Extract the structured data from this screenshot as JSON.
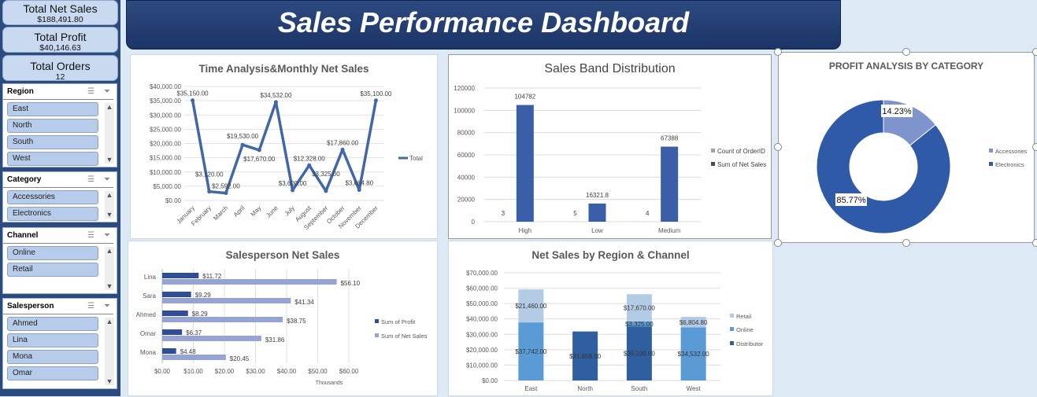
{
  "kpis": [
    {
      "label": "Total Net Sales",
      "value": "$188,491.80"
    },
    {
      "label": "Total Profit",
      "value": "$40,146.63"
    },
    {
      "label": "Total Orders",
      "value": "12"
    }
  ],
  "slicers": {
    "region": {
      "title": "Region",
      "items": [
        "East",
        "North",
        "South",
        "West"
      ]
    },
    "category": {
      "title": "Category",
      "items": [
        "Accessories",
        "Electronics"
      ]
    },
    "channel": {
      "title": "Channel",
      "items": [
        "Online",
        "Retail"
      ]
    },
    "salesperson": {
      "title": "Salesperson",
      "items": [
        "Ahmed",
        "Lina",
        "Mona",
        "Omar"
      ]
    }
  },
  "header": {
    "title": "Sales Performance Dashboard"
  },
  "colors": {
    "navy": "#1f3864",
    "series": "#3b5ea8",
    "light": "#8e9fd0"
  },
  "chart_data": [
    {
      "id": "monthly",
      "type": "line",
      "title": "Time Analysis&Monthly Net Sales",
      "categories": [
        "January",
        "February",
        "March",
        "April",
        "May",
        "June",
        "July",
        "August",
        "September",
        "October",
        "November",
        "December"
      ],
      "values": [
        35150,
        3120,
        2592,
        19530,
        17670,
        34532,
        3600,
        12328,
        3325,
        17860,
        3684.8,
        35100
      ],
      "labels": [
        "$35,150.00",
        "$3,120.00",
        "$2,592.00",
        "$19,530.00",
        "$17,670.00",
        "$34,532.00",
        "$3,600.00",
        "$12,328.00",
        "$3,325.00",
        "$17,860.00",
        "$3,684.80",
        "$35,100.00"
      ],
      "yticks": [
        "$0.00",
        "$5,000.00",
        "$10,000.00",
        "$15,000.00",
        "$20,000.00",
        "$25,000.00",
        "$30,000.00",
        "$35,000.00",
        "$40,000.00"
      ],
      "ylim": [
        0,
        40000
      ],
      "legend": "Total"
    },
    {
      "id": "band",
      "type": "bar",
      "title": "Sales Band Distribution",
      "categories": [
        "High",
        "Low",
        "Medium"
      ],
      "series": [
        {
          "name": "Count of OrderID",
          "values": [
            3,
            5,
            4
          ]
        },
        {
          "name": "Sum of Net Sales",
          "values": [
            104782,
            16321.8,
            67388
          ]
        }
      ],
      "yticks": [
        "0",
        "20000",
        "40000",
        "60000",
        "80000",
        "100000",
        "120000"
      ],
      "ylim": [
        0,
        120000
      ]
    },
    {
      "id": "profit",
      "type": "pie",
      "title": "PROFIT ANALYSIS BY CATEGORY",
      "categories": [
        "Accessories",
        "Electronics"
      ],
      "values": [
        14.23,
        85.77
      ],
      "labels": [
        "14.23%",
        "85.77%"
      ]
    },
    {
      "id": "salesperson",
      "type": "bar",
      "title": "Salesperson Net Sales",
      "categories": [
        "Lina",
        "Sara",
        "Ahmed",
        "Omar",
        "Mona"
      ],
      "series": [
        {
          "name": "Sum of Profit",
          "values": [
            11.72,
            9.29,
            8.29,
            6.37,
            4.48
          ],
          "labels": [
            "$11.72",
            "$9.29",
            "$8.29",
            "$6.37",
            "$4.48"
          ]
        },
        {
          "name": "Sum of Net Sales",
          "values": [
            56.1,
            41.34,
            38.75,
            31.86,
            20.45
          ],
          "labels": [
            "$56.10",
            "$41.34",
            "$38.75",
            "$31.86",
            "$20.45"
          ]
        }
      ],
      "xticks": [
        "$0.00",
        "$10.00",
        "$20.00",
        "$30.00",
        "$40.00",
        "$50.00",
        "$60.00"
      ],
      "xlim": [
        0,
        60
      ],
      "xlabel": "Thousands"
    },
    {
      "id": "region",
      "type": "bar",
      "title": "Net Sales by Region & Channel",
      "categories": [
        "East",
        "North",
        "South",
        "West"
      ],
      "series": [
        {
          "name": "Distributor",
          "values": [
            0,
            31858,
            35100,
            0
          ],
          "labels": [
            "",
            "$31,858.00",
            "$35,100.00",
            ""
          ]
        },
        {
          "name": "Online",
          "values": [
            37742,
            0,
            3325,
            34532
          ],
          "labels": [
            "$37,742.00",
            "",
            "$3,325.00",
            "$34,532.00"
          ]
        },
        {
          "name": "Retail",
          "values": [
            21460,
            0,
            17670,
            6804.8
          ],
          "labels": [
            "$21,460.00",
            "",
            "$17,670.00",
            "$6,804.80"
          ]
        }
      ],
      "yticks": [
        "$0.00",
        "$10,000.00",
        "$20,000.00",
        "$30,000.00",
        "$40,000.00",
        "$50,000.00",
        "$60,000.00",
        "$70,000.00"
      ],
      "ylim": [
        0,
        70000
      ],
      "legend_order": [
        "Retail",
        "Online",
        "Distributor"
      ]
    }
  ]
}
